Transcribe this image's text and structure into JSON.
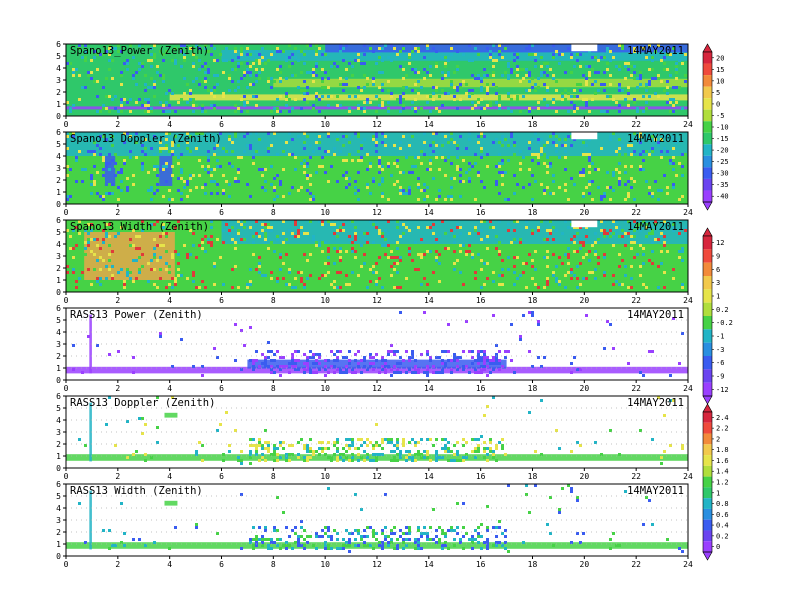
{
  "figure": {
    "date_label": "14MAY2011"
  },
  "colors": {
    "frame": "#000000",
    "gridline": "#b0b0b0",
    "missing": "#ffffff",
    "purple": "#9a40ff",
    "blue": "#3a5cf0",
    "cyan": "#22b4c6",
    "green": "#46d246",
    "yellow": "#e6e44a",
    "red": "#e03a3a"
  },
  "chart_data": [
    {
      "type": "heatmap",
      "title": "Spano13_Power (Zenith)",
      "date": "14MAY2011",
      "xlim": [
        0,
        24
      ],
      "ylim": [
        0,
        6
      ],
      "xticks": [
        0,
        2,
        4,
        6,
        8,
        10,
        12,
        14,
        16,
        18,
        20,
        22,
        24
      ],
      "yticks": [
        0,
        1,
        2,
        3,
        4,
        5,
        6
      ],
      "colorbar": "power",
      "base_color": "#2fc86a",
      "bands": [
        {
          "y": 0.55,
          "h": 0.25,
          "color": "#9a40ff"
        },
        {
          "y": 1.3,
          "h": 0.5,
          "color": "#e6e44a",
          "x0": 4,
          "x1": 24
        },
        {
          "y": 2.4,
          "h": 0.7,
          "color": "#a6dc3c",
          "x0": 8,
          "x1": 24
        },
        {
          "y": 4.6,
          "h": 0.9,
          "color": "#22b4c6",
          "x0": 6,
          "x1": 24
        },
        {
          "y": 5.3,
          "h": 0.7,
          "color": "#3a5cf0",
          "x0": 10,
          "x1": 24
        }
      ],
      "noise": "dense",
      "gap": [
        19.5,
        20.5,
        5.4,
        6
      ]
    },
    {
      "type": "heatmap",
      "title": "Spano13 Doppler (Zenith)",
      "date": "14MAY2011",
      "xlim": [
        0,
        24
      ],
      "ylim": [
        0,
        6
      ],
      "xticks": [
        0,
        2,
        4,
        6,
        8,
        10,
        12,
        14,
        16,
        18,
        20,
        22,
        24
      ],
      "yticks": [
        0,
        1,
        2,
        3,
        4,
        5,
        6
      ],
      "colorbar": "power",
      "base_color": "#46d246",
      "bands": [
        {
          "y": 4.0,
          "h": 2.0,
          "color": "#22b4c6"
        },
        {
          "y": 1.5,
          "h": 2.5,
          "color": "#3a5cf0",
          "x0": 1.5,
          "x1": 1.9
        },
        {
          "y": 1.5,
          "h": 2.5,
          "color": "#3a5cf0",
          "x0": 3.6,
          "x1": 4.1
        }
      ],
      "noise": "dense",
      "gap": [
        19.5,
        20.5,
        5.4,
        6
      ]
    },
    {
      "type": "heatmap",
      "title": "Spano13 Width (Zenith)",
      "date": "14MAY2011",
      "xlim": [
        0,
        24
      ],
      "ylim": [
        0,
        6
      ],
      "xticks": [
        0,
        2,
        4,
        6,
        8,
        10,
        12,
        14,
        16,
        18,
        20,
        22,
        24
      ],
      "yticks": [
        0,
        1,
        2,
        3,
        4,
        5,
        6
      ],
      "colorbar": "width",
      "base_color": "#46d246",
      "bands": [
        {
          "y": 4.0,
          "h": 2.0,
          "color": "#22b4c6",
          "x0": 6,
          "x1": 24
        },
        {
          "y": 1.0,
          "h": 4.0,
          "color": "#e6a84a",
          "x0": 0.7,
          "x1": 4.2
        }
      ],
      "noise": "hot",
      "gap": [
        19.5,
        20.5,
        5.4,
        6
      ]
    },
    {
      "type": "heatmap",
      "title": "RASS13  Power  (Zenith)",
      "date": "14MAY2011",
      "xlim": [
        0,
        24
      ],
      "ylim": [
        0,
        6
      ],
      "xticks": [
        0,
        2,
        4,
        6,
        8,
        10,
        12,
        14,
        16,
        18,
        20,
        22,
        24
      ],
      "yticks": [
        0,
        1,
        2,
        3,
        4,
        5,
        6
      ],
      "colorbar": "width",
      "base_color": "#ffffff",
      "bands": [
        {
          "y": 0.55,
          "h": 0.55,
          "color": "#9a40ff"
        },
        {
          "y": 0.95,
          "h": 0.75,
          "color": "#3a5cf0",
          "x0": 7,
          "x1": 17
        },
        {
          "y": 0.55,
          "h": 4.9,
          "color": "#9a40ff",
          "x0": 0.9,
          "x1": 1.0
        }
      ],
      "noise": "sparse-purple",
      "gap": null
    },
    {
      "type": "heatmap",
      "title": "RASS13 Doppler (Zenith)",
      "date": "14MAY2011",
      "xlim": [
        0,
        24
      ],
      "ylim": [
        0,
        6
      ],
      "xticks": [
        0,
        2,
        4,
        6,
        8,
        10,
        12,
        14,
        16,
        18,
        20,
        22,
        24
      ],
      "yticks": [
        0,
        1,
        2,
        3,
        4,
        5,
        6
      ],
      "colorbar": "rass",
      "base_color": "#ffffff",
      "bands": [
        {
          "y": 0.6,
          "h": 0.55,
          "color": "#46d246"
        },
        {
          "y": 0.55,
          "h": 4.9,
          "color": "#22b4c6",
          "x0": 0.9,
          "x1": 1.0
        },
        {
          "y": 4.2,
          "h": 0.4,
          "color": "#46d246",
          "x0": 3.8,
          "x1": 4.3
        }
      ],
      "noise": "sparse-green",
      "gap": null
    },
    {
      "type": "heatmap",
      "title": "RASS13  Width  (Zenith)",
      "date": "14MAY2011",
      "xlim": [
        0,
        24
      ],
      "ylim": [
        0,
        6
      ],
      "xticks": [
        0,
        2,
        4,
        6,
        8,
        10,
        12,
        14,
        16,
        18,
        20,
        22,
        24
      ],
      "yticks": [
        0,
        1,
        2,
        3,
        4,
        5,
        6
      ],
      "colorbar": "rass",
      "base_color": "#ffffff",
      "bands": [
        {
          "y": 0.6,
          "h": 0.55,
          "color": "#46d246"
        },
        {
          "y": 0.55,
          "h": 4.9,
          "color": "#22b4c6",
          "x0": 0.9,
          "x1": 1.0
        },
        {
          "y": 4.2,
          "h": 0.4,
          "color": "#46d246",
          "x0": 3.8,
          "x1": 4.3
        }
      ],
      "noise": "sparse-cyan",
      "gap": null
    }
  ],
  "colorbars": {
    "power": {
      "labels": [
        "20",
        "15",
        "10",
        "5",
        "0",
        "-5",
        "-10",
        "-15",
        "-20",
        "-25",
        "-30",
        "-35",
        "-40"
      ],
      "colors": [
        "#d7263d",
        "#ef4a3c",
        "#f28a3a",
        "#f2c94c",
        "#e6e44a",
        "#b0de3c",
        "#46d246",
        "#2fc86a",
        "#22b4c6",
        "#2a8fe0",
        "#3a5cf0",
        "#6a44f0",
        "#9a40ff"
      ]
    },
    "width": {
      "labels": [
        "12",
        "9",
        "6",
        "3",
        "1",
        "0.2",
        "-0.2",
        "-1",
        "-3",
        "-6",
        "-9",
        "-12"
      ],
      "colors": [
        "#d7263d",
        "#ef4a3c",
        "#f28a3a",
        "#f2c94c",
        "#e6e44a",
        "#b0de3c",
        "#46d246",
        "#22b4c6",
        "#2a8fe0",
        "#3a5cf0",
        "#6a44f0",
        "#9a40ff"
      ]
    },
    "rass": {
      "labels": [
        "2.4",
        "2.2",
        "2",
        "1.8",
        "1.6",
        "1.4",
        "1.2",
        "1",
        "0.8",
        "0.6",
        "0.4",
        "0.2",
        "0"
      ],
      "colors": [
        "#d7263d",
        "#ef4a3c",
        "#f28a3a",
        "#f2c94c",
        "#e6e44a",
        "#b0de3c",
        "#46d246",
        "#2fc86a",
        "#22b4c6",
        "#2a8fe0",
        "#3a5cf0",
        "#6a44f0",
        "#9a40ff"
      ]
    }
  }
}
